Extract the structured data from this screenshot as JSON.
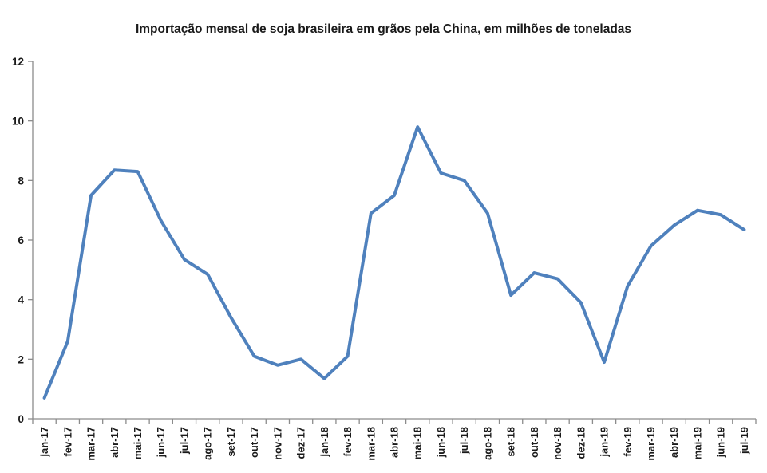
{
  "chart_data": {
    "type": "line",
    "title": "Importação mensal de soja brasileira em grãos pela China, em milhões de toneladas",
    "categories": [
      "jan-17",
      "fev-17",
      "mar-17",
      "abr-17",
      "mai-17",
      "jun-17",
      "jul-17",
      "ago-17",
      "set-17",
      "out-17",
      "nov-17",
      "dez-17",
      "jan-18",
      "fev-18",
      "mar-18",
      "abr-18",
      "mai-18",
      "jun-18",
      "jul-18",
      "ago-18",
      "set-18",
      "out-18",
      "nov-18",
      "dez-18",
      "jan-19",
      "fev-19",
      "mar-19",
      "abr-19",
      "mai-19",
      "jun-19",
      "jul-19"
    ],
    "values": [
      0.7,
      2.6,
      7.5,
      8.35,
      8.3,
      6.65,
      5.35,
      4.85,
      3.4,
      2.1,
      1.8,
      2.0,
      1.35,
      2.1,
      6.9,
      7.5,
      9.8,
      8.25,
      8.0,
      6.9,
      4.15,
      4.9,
      4.7,
      3.9,
      1.9,
      4.45,
      5.8,
      6.5,
      7.0,
      6.85,
      6.35
    ],
    "xlabel": "",
    "ylabel": "",
    "ylim": [
      0,
      12
    ],
    "yticks": [
      0,
      2,
      4,
      6,
      8,
      10,
      12
    ],
    "grid": false,
    "legend": false,
    "line_color": "#4f81bd",
    "axis_color": "#8c8c8c",
    "text_color": "#1a1a1a"
  }
}
